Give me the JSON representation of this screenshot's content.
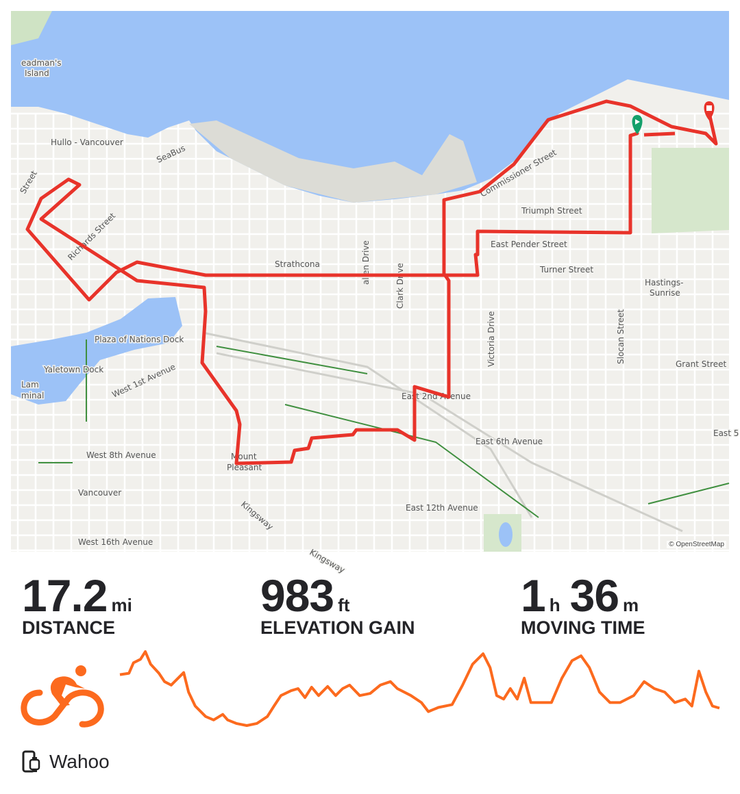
{
  "map": {
    "labels": [
      {
        "text": "eadman's",
        "x": 15,
        "y": 80
      },
      {
        "text": "Island",
        "x": 20,
        "y": 95
      },
      {
        "text": "Hullo - Vancouver",
        "x": 58,
        "y": 196
      },
      {
        "text": "SeaBus",
        "x": 215,
        "y": 222,
        "rot": -25
      },
      {
        "text": "Street",
        "x": 20,
        "y": 268,
        "rot": -60
      },
      {
        "text": "Richards Street",
        "x": 88,
        "y": 365,
        "rot": -45
      },
      {
        "text": "Strathcona",
        "x": 385,
        "y": 374
      },
      {
        "text": "allen Drive",
        "x": 522,
        "y": 400,
        "rot": -90
      },
      {
        "text": "Clark Drive",
        "x": 572,
        "y": 435,
        "rot": -90
      },
      {
        "text": "Commissioner Street",
        "x": 688,
        "y": 272,
        "rot": -30
      },
      {
        "text": "Triumph Street",
        "x": 745,
        "y": 296
      },
      {
        "text": "East Pender Street",
        "x": 700,
        "y": 345
      },
      {
        "text": "Turner Street",
        "x": 772,
        "y": 382
      },
      {
        "text": "Hastings-",
        "x": 925,
        "y": 401
      },
      {
        "text": "Sunrise",
        "x": 932,
        "y": 416
      },
      {
        "text": "Victoria Drive",
        "x": 705,
        "y": 520,
        "rot": -90
      },
      {
        "text": "Slocan Street",
        "x": 894,
        "y": 516,
        "rot": -90
      },
      {
        "text": "Grant Street",
        "x": 970,
        "y": 520
      },
      {
        "text": "Plaza of Nations Dock",
        "x": 122,
        "y": 484
      },
      {
        "text": "Yaletown Dock",
        "x": 48,
        "y": 528
      },
      {
        "text": "West 1st Avenue",
        "x": 150,
        "y": 565,
        "rot": -25
      },
      {
        "text": "East 2nd Avenue",
        "x": 570,
        "y": 567
      },
      {
        "text": "East 6th Avenue",
        "x": 678,
        "y": 633
      },
      {
        "text": "East 5",
        "x": 1025,
        "y": 621
      },
      {
        "text": "West 8th Avenue",
        "x": 110,
        "y": 653
      },
      {
        "text": "Mount",
        "x": 321,
        "y": 655
      },
      {
        "text": "Pleasant",
        "x": 315,
        "y": 671
      },
      {
        "text": "Vancouver",
        "x": 98,
        "y": 708,
        "big": true
      },
      {
        "text": "Kingsway",
        "x": 335,
        "y": 722,
        "rot": 40
      },
      {
        "text": "East 12th Avenue",
        "x": 576,
        "y": 730
      },
      {
        "text": "West 16th Avenue",
        "x": 98,
        "y": 780
      },
      {
        "text": "Kingsway",
        "x": 435,
        "y": 793,
        "rot": 30
      },
      {
        "text": "Lam",
        "x": 15,
        "y": 550
      },
      {
        "text": "minal",
        "x": 15,
        "y": 566
      }
    ],
    "attribution": "© OpenStreetMap",
    "route_color": "#e8332a",
    "start_marker_color": "#14a06b",
    "end_marker_color": "#e8332a"
  },
  "stats": {
    "distance": {
      "value": "17.2",
      "unit": "mi",
      "label": "DISTANCE"
    },
    "elevation": {
      "value": "983",
      "unit": "ft",
      "label": "ELEVATION GAIN"
    },
    "moving_time": {
      "hours": "1",
      "h_unit": "h",
      "minutes": "36",
      "m_unit": "m",
      "label": "MOVING TIME"
    }
  },
  "activity": {
    "type_icon": "cycling-icon",
    "accent": "#fc6a1e"
  },
  "device": {
    "icon": "phone-watch-icon",
    "name": "Wahoo"
  },
  "chart_data": {
    "type": "line",
    "title": "",
    "xlabel": "",
    "ylabel": "",
    "xlim": [
      0,
      17.2
    ],
    "grid": false,
    "color": "#fc6a1e",
    "points": [
      [
        0,
        75
      ],
      [
        0.26,
        77
      ],
      [
        0.39,
        92
      ],
      [
        0.59,
        97
      ],
      [
        0.73,
        108
      ],
      [
        0.88,
        90
      ],
      [
        1.12,
        77
      ],
      [
        1.28,
        65
      ],
      [
        1.47,
        60
      ],
      [
        1.67,
        70
      ],
      [
        1.83,
        78
      ],
      [
        1.97,
        50
      ],
      [
        2.16,
        30
      ],
      [
        2.46,
        15
      ],
      [
        2.69,
        10
      ],
      [
        2.95,
        18
      ],
      [
        3.09,
        10
      ],
      [
        3.34,
        5
      ],
      [
        3.64,
        2
      ],
      [
        3.93,
        5
      ],
      [
        4.23,
        15
      ],
      [
        4.42,
        30
      ],
      [
        4.62,
        45
      ],
      [
        4.91,
        52
      ],
      [
        5.11,
        55
      ],
      [
        5.31,
        42
      ],
      [
        5.5,
        57
      ],
      [
        5.7,
        45
      ],
      [
        5.96,
        58
      ],
      [
        6.19,
        45
      ],
      [
        6.39,
        55
      ],
      [
        6.59,
        60
      ],
      [
        6.88,
        45
      ],
      [
        7.18,
        48
      ],
      [
        7.47,
        60
      ],
      [
        7.76,
        65
      ],
      [
        7.96,
        55
      ],
      [
        8.35,
        45
      ],
      [
        8.65,
        35
      ],
      [
        8.85,
        22
      ],
      [
        9.14,
        28
      ],
      [
        9.53,
        32
      ],
      [
        9.83,
        60
      ],
      [
        10.12,
        90
      ],
      [
        10.42,
        105
      ],
      [
        10.62,
        85
      ],
      [
        10.81,
        45
      ],
      [
        11.01,
        40
      ],
      [
        11.2,
        55
      ],
      [
        11.4,
        40
      ],
      [
        11.6,
        70
      ],
      [
        11.79,
        35
      ],
      [
        12.09,
        35
      ],
      [
        12.38,
        35
      ],
      [
        12.68,
        70
      ],
      [
        12.97,
        95
      ],
      [
        13.23,
        102
      ],
      [
        13.47,
        85
      ],
      [
        13.76,
        50
      ],
      [
        14.06,
        35
      ],
      [
        14.35,
        35
      ],
      [
        14.74,
        45
      ],
      [
        15.04,
        65
      ],
      [
        15.33,
        55
      ],
      [
        15.63,
        50
      ],
      [
        15.92,
        35
      ],
      [
        16.22,
        40
      ],
      [
        16.41,
        30
      ],
      [
        16.61,
        80
      ],
      [
        16.81,
        50
      ],
      [
        17.0,
        30
      ],
      [
        17.2,
        27
      ]
    ]
  }
}
